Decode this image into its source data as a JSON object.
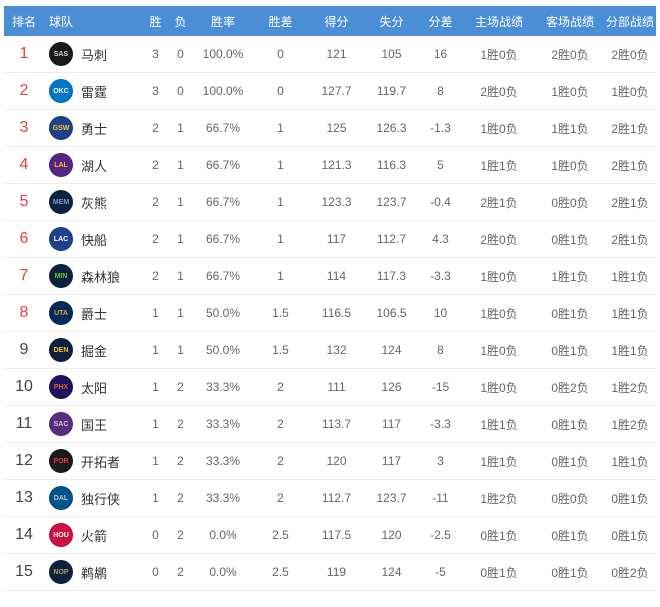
{
  "colors": {
    "header_bg": "#4a8fd5",
    "header_text": "#ffffff",
    "rank_top8": "#e83f3f",
    "rank_normal": "#444444",
    "row_border": "#ededed",
    "text": "#666666",
    "team_text": "#333333"
  },
  "table": {
    "headers": [
      "排名",
      "球队",
      "胜",
      "负",
      "胜率",
      "胜差",
      "得分",
      "失分",
      "分差",
      "主场战绩",
      "客场战绩",
      "分部战绩"
    ],
    "rows": [
      {
        "rank": "1",
        "top8": true,
        "team": "马刺",
        "abbr": "SAS",
        "logo_bg": "#1a1a1a",
        "logo_fg": "#cfd4d8",
        "w": "3",
        "l": "0",
        "pct": "100.0%",
        "gb": "0",
        "pf": "121",
        "pa": "105",
        "diff": "16",
        "home": "1胜0负",
        "away": "2胜0负",
        "div": "2胜0负"
      },
      {
        "rank": "2",
        "top8": true,
        "team": "雷霆",
        "abbr": "OKC",
        "logo_bg": "#0075c9",
        "logo_fg": "#ffffff",
        "w": "3",
        "l": "0",
        "pct": "100.0%",
        "gb": "0",
        "pf": "127.7",
        "pa": "119.7",
        "diff": "8",
        "home": "2胜0负",
        "away": "1胜0负",
        "div": "1胜0负"
      },
      {
        "rank": "3",
        "top8": true,
        "team": "勇士",
        "abbr": "GSW",
        "logo_bg": "#1d428a",
        "logo_fg": "#ffc72c",
        "w": "2",
        "l": "1",
        "pct": "66.7%",
        "gb": "1",
        "pf": "125",
        "pa": "126.3",
        "diff": "-1.3",
        "home": "1胜0负",
        "away": "1胜1负",
        "div": "2胜1负"
      },
      {
        "rank": "4",
        "top8": true,
        "team": "湖人",
        "abbr": "LAL",
        "logo_bg": "#552583",
        "logo_fg": "#fdb927",
        "w": "2",
        "l": "1",
        "pct": "66.7%",
        "gb": "1",
        "pf": "121.3",
        "pa": "116.3",
        "diff": "5",
        "home": "1胜1负",
        "away": "1胜0负",
        "div": "2胜1负"
      },
      {
        "rank": "5",
        "top8": true,
        "team": "灰熊",
        "abbr": "MEM",
        "logo_bg": "#0c2340",
        "logo_fg": "#7d9bc1",
        "w": "2",
        "l": "1",
        "pct": "66.7%",
        "gb": "1",
        "pf": "123.3",
        "pa": "123.7",
        "diff": "-0.4",
        "home": "2胜1负",
        "away": "0胜0负",
        "div": "2胜1负"
      },
      {
        "rank": "6",
        "top8": true,
        "team": "快船",
        "abbr": "LAC",
        "logo_bg": "#1d428a",
        "logo_fg": "#ffffff",
        "w": "2",
        "l": "1",
        "pct": "66.7%",
        "gb": "1",
        "pf": "117",
        "pa": "112.7",
        "diff": "4.3",
        "home": "2胜0负",
        "away": "0胜1负",
        "div": "2胜1负"
      },
      {
        "rank": "7",
        "top8": true,
        "team": "森林狼",
        "abbr": "MIN",
        "logo_bg": "#0c2340",
        "logo_fg": "#78be20",
        "w": "2",
        "l": "1",
        "pct": "66.7%",
        "gb": "1",
        "pf": "114",
        "pa": "117.3",
        "diff": "-3.3",
        "home": "1胜0负",
        "away": "1胜1负",
        "div": "1胜1负"
      },
      {
        "rank": "8",
        "top8": true,
        "team": "爵士",
        "abbr": "UTA",
        "logo_bg": "#002b5c",
        "logo_fg": "#f9a01b",
        "w": "1",
        "l": "1",
        "pct": "50.0%",
        "gb": "1.5",
        "pf": "116.5",
        "pa": "106.5",
        "diff": "10",
        "home": "1胜0负",
        "away": "0胜1负",
        "div": "1胜1负"
      },
      {
        "rank": "9",
        "top8": false,
        "team": "掘金",
        "abbr": "DEN",
        "logo_bg": "#0e2240",
        "logo_fg": "#fec524",
        "w": "1",
        "l": "1",
        "pct": "50.0%",
        "gb": "1.5",
        "pf": "132",
        "pa": "124",
        "diff": "8",
        "home": "1胜0负",
        "away": "0胜1负",
        "div": "1胜1负"
      },
      {
        "rank": "10",
        "top8": false,
        "team": "太阳",
        "abbr": "PHX",
        "logo_bg": "#1d1160",
        "logo_fg": "#e56020",
        "w": "1",
        "l": "2",
        "pct": "33.3%",
        "gb": "2",
        "pf": "111",
        "pa": "126",
        "diff": "-15",
        "home": "1胜0负",
        "away": "0胜2负",
        "div": "1胜2负"
      },
      {
        "rank": "11",
        "top8": false,
        "team": "国王",
        "abbr": "SAC",
        "logo_bg": "#5a2d81",
        "logo_fg": "#c4ced4",
        "w": "1",
        "l": "2",
        "pct": "33.3%",
        "gb": "2",
        "pf": "113.7",
        "pa": "117",
        "diff": "-3.3",
        "home": "1胜1负",
        "away": "0胜1负",
        "div": "1胜2负"
      },
      {
        "rank": "12",
        "top8": false,
        "team": "开拓者",
        "abbr": "POR",
        "logo_bg": "#1a1a1a",
        "logo_fg": "#e03a3e",
        "w": "1",
        "l": "2",
        "pct": "33.3%",
        "gb": "2",
        "pf": "120",
        "pa": "117",
        "diff": "3",
        "home": "1胜1负",
        "away": "0胜1负",
        "div": "1胜1负"
      },
      {
        "rank": "13",
        "top8": false,
        "team": "独行侠",
        "abbr": "DAL",
        "logo_bg": "#00538c",
        "logo_fg": "#b8c4ca",
        "w": "1",
        "l": "2",
        "pct": "33.3%",
        "gb": "2",
        "pf": "112.7",
        "pa": "123.7",
        "diff": "-11",
        "home": "1胜2负",
        "away": "0胜0负",
        "div": "0胜1负"
      },
      {
        "rank": "14",
        "top8": false,
        "team": "火箭",
        "abbr": "HOU",
        "logo_bg": "#ce1141",
        "logo_fg": "#ffffff",
        "w": "0",
        "l": "2",
        "pct": "0.0%",
        "gb": "2.5",
        "pf": "117.5",
        "pa": "120",
        "diff": "-2.5",
        "home": "0胜1负",
        "away": "0胜1负",
        "div": "0胜1负"
      },
      {
        "rank": "15",
        "top8": false,
        "team": "鹈鹕",
        "abbr": "NOP",
        "logo_bg": "#0c2340",
        "logo_fg": "#b4975a",
        "w": "0",
        "l": "2",
        "pct": "0.0%",
        "gb": "2.5",
        "pf": "119",
        "pa": "124",
        "diff": "-5",
        "home": "0胜1负",
        "away": "0胜1负",
        "div": "0胜2负"
      }
    ]
  }
}
